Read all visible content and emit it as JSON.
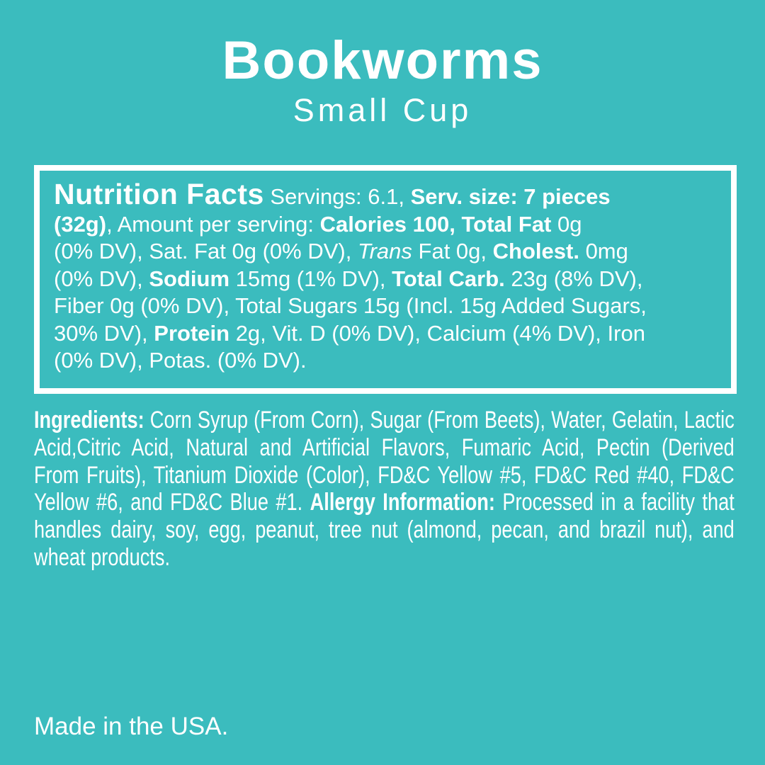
{
  "page": {
    "background_color": "#3bbcbe",
    "text_color": "#ffffff",
    "border_color": "#ffffff"
  },
  "header": {
    "title": "Bookworms",
    "subtitle": "Small Cup"
  },
  "nutrition": {
    "lines": [
      [
        {
          "t": "Nutrition Facts",
          "s": "head"
        },
        {
          "t": " Servings: 6.1, "
        },
        {
          "t": "Serv. size: 7 pieces",
          "s": "b"
        }
      ],
      [
        {
          "t": "(32g)",
          "s": "b"
        },
        {
          "t": ", Amount per serving: "
        },
        {
          "t": "Calories 100, Total Fat",
          "s": "b"
        },
        {
          "t": " 0g"
        }
      ],
      [
        {
          "t": "(0% DV), Sat. Fat 0g (0% DV), "
        },
        {
          "t": "Trans",
          "s": "i"
        },
        {
          "t": " Fat 0g, "
        },
        {
          "t": "Cholest.",
          "s": "b"
        },
        {
          "t": " 0mg"
        }
      ],
      [
        {
          "t": "(0% DV), "
        },
        {
          "t": "Sodium",
          "s": "b"
        },
        {
          "t": " 15mg (1% DV), "
        },
        {
          "t": "Total Carb.",
          "s": "b"
        },
        {
          "t": " 23g (8% DV),"
        }
      ],
      [
        {
          "t": "Fiber 0g (0% DV), Total Sugars 15g (Incl. 15g Added Sugars,"
        }
      ],
      [
        {
          "t": "30% DV), "
        },
        {
          "t": "Protein",
          "s": "b"
        },
        {
          "t": " 2g, Vit. D (0% DV), Calcium (4% DV), Iron"
        }
      ],
      [
        {
          "t": "(0% DV), Potas. (0% DV)."
        }
      ]
    ]
  },
  "ingredients": {
    "lines": [
      [
        {
          "t": "Ingredients:",
          "s": "b"
        },
        {
          "t": " Corn Syrup (From Corn), Sugar (From Beets), Water, Gelatin, Lactic"
        }
      ],
      [
        {
          "t": "Acid,Citric Acid, Natural and Artificial Flavors, Fumaric Acid, Pectin (Derived"
        }
      ],
      [
        {
          "t": "From Fruits), Titanium Dioxide (Color), FD&C Yellow #5, FD&C Red #40, FD&C"
        }
      ],
      [
        {
          "t": "Yellow #6, and FD&C Blue #1. "
        },
        {
          "t": "Allergy Information:",
          "s": "b"
        },
        {
          "t": " Processed in a facility that"
        }
      ],
      [
        {
          "t": "handles dairy, soy, egg, peanut, tree nut (almond, pecan, and brazil nut), and"
        }
      ],
      [
        {
          "t": "wheat products."
        }
      ]
    ]
  },
  "footer": {
    "made_in": "Made in the USA."
  }
}
